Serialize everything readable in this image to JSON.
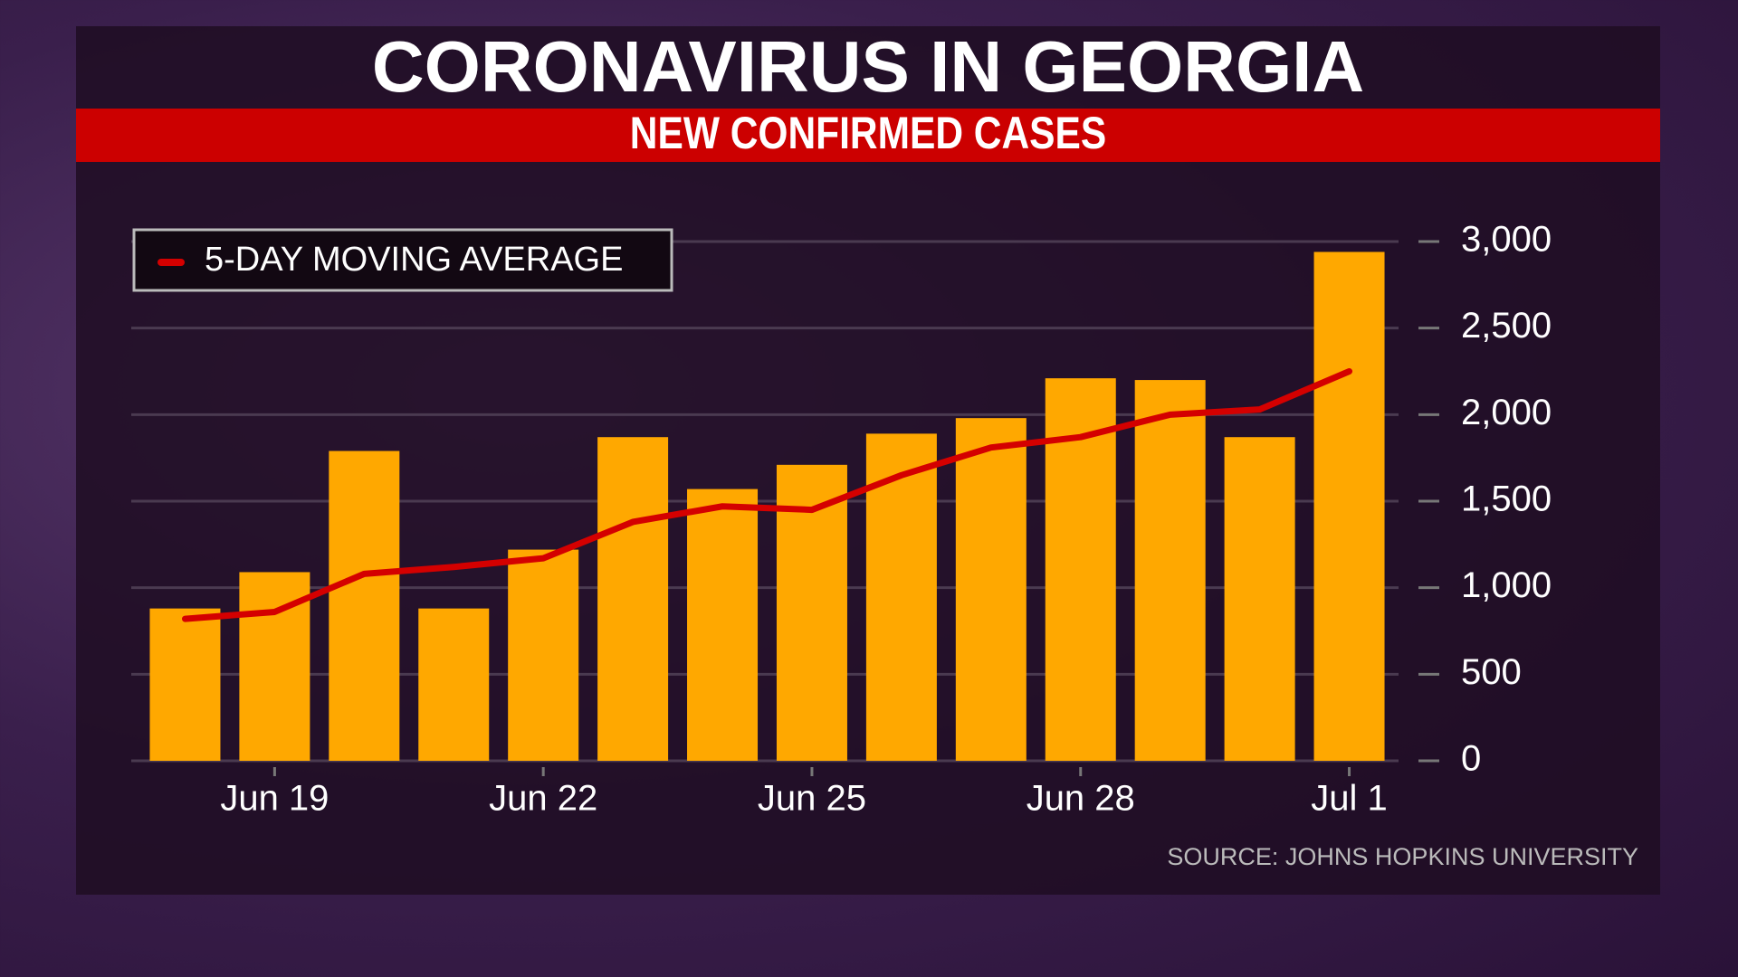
{
  "chart_data": {
    "type": "bar",
    "title": "CORONAVIRUS IN GEORGIA",
    "subtitle": "NEW CONFIRMED CASES",
    "source": "SOURCE: JOHNS HOPKINS UNIVERSITY",
    "categories": [
      null,
      "Jun 19",
      null,
      null,
      "Jun 22",
      null,
      null,
      "Jun 25",
      null,
      null,
      "Jun 28",
      null,
      null,
      "Jul 1"
    ],
    "series": [
      {
        "type": "bar",
        "color": "#ffa800",
        "values": [
          880,
          1090,
          1790,
          880,
          1220,
          1870,
          1570,
          1710,
          1890,
          1980,
          2210,
          2200,
          1870,
          2940
        ]
      },
      {
        "type": "line",
        "name": "5-DAY MOVING AVERAGE",
        "color": "#d40000",
        "values": [
          820,
          860,
          1080,
          1120,
          1170,
          1380,
          1470,
          1450,
          1650,
          1810,
          1870,
          2000,
          2030,
          2250
        ]
      }
    ],
    "ylim": [
      0,
      3000
    ],
    "yticks": [
      0,
      500,
      {
        "value": 1000,
        "label": "1,000"
      },
      {
        "value": 1500,
        "label": "1,500"
      },
      {
        "value": 2000,
        "label": "2,000"
      },
      {
        "value": 2500,
        "label": "2,500"
      },
      {
        "value": 3000,
        "label": "3,000"
      }
    ],
    "grid": true,
    "legend": "top-left"
  }
}
